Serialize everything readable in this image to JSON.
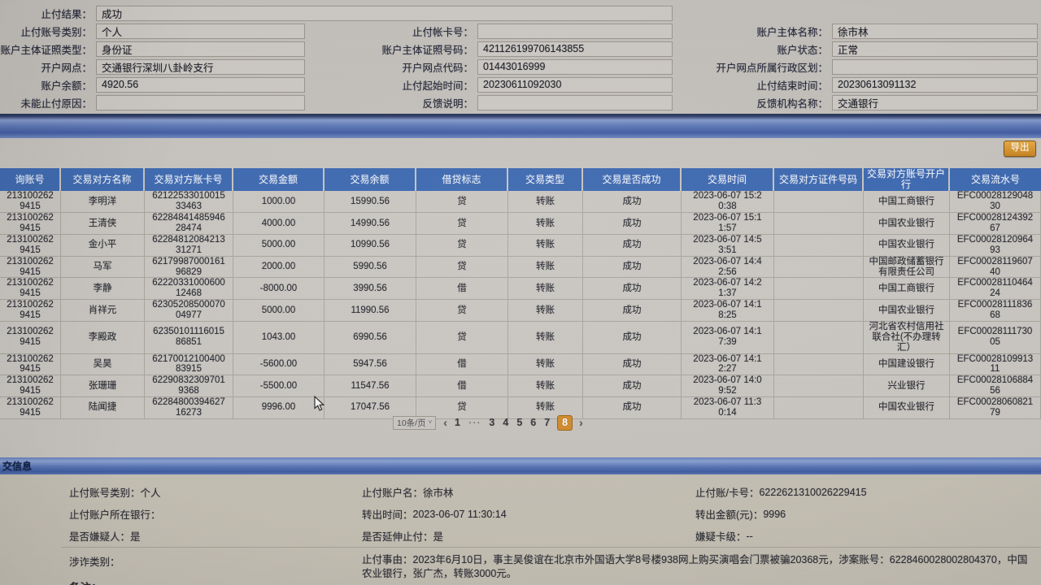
{
  "top_form": {
    "row0": {
      "label": "止付结果：",
      "value": "成功"
    },
    "left": [
      {
        "label": "止付账号类别：",
        "value": "个人"
      },
      {
        "label": "账户主体证照类型：",
        "value": "身份证"
      },
      {
        "label": "开户网点：",
        "value": "交通银行深圳八卦岭支行"
      },
      {
        "label": "账户余额：",
        "value": "4920.56"
      },
      {
        "label": "未能止付原因：",
        "value": ""
      }
    ],
    "mid": [
      {
        "label": "止付帐卡号：",
        "value": ""
      },
      {
        "label": "账户主体证照号码：",
        "value": "421126199706143855"
      },
      {
        "label": "开户网点代码：",
        "value": "01443016999"
      },
      {
        "label": "止付起始时间：",
        "value": "20230611092030"
      },
      {
        "label": "反馈说明：",
        "value": ""
      }
    ],
    "right": [
      {
        "label": "账户主体名称：",
        "value": "徐市林"
      },
      {
        "label": "账户状态：",
        "value": "正常"
      },
      {
        "label": "开户网点所属行政区划：",
        "value": ""
      },
      {
        "label": "止付结束时间：",
        "value": "20230613091132"
      },
      {
        "label": "反馈机构名称：",
        "value": "交通银行"
      }
    ]
  },
  "toolbar": {
    "export_label": "导出"
  },
  "table": {
    "headers": [
      "询账号",
      "交易对方名称",
      "交易对方账卡号",
      "交易金额",
      "交易余额",
      "借贷标志",
      "交易类型",
      "交易是否成功",
      "交易时间",
      "交易对方证件号码",
      "交易对方账号开户行",
      "交易流水号"
    ],
    "rows": [
      [
        "213100262\n9415",
        "李明洋",
        "62122533010015\n33463",
        "1000.00",
        "15990.56",
        "贷",
        "转账",
        "成功",
        "2023-06-07 15:2\n0:38",
        "",
        "中国工商银行",
        "EFC00028129048\n30"
      ],
      [
        "213100262\n9415",
        "王清侠",
        "62284841485946\n28474",
        "4000.00",
        "14990.56",
        "贷",
        "转账",
        "成功",
        "2023-06-07 15:1\n1:57",
        "",
        "中国农业银行",
        "EFC00028124392\n67"
      ],
      [
        "213100262\n9415",
        "金小平",
        "62284812084213\n31271",
        "5000.00",
        "10990.56",
        "贷",
        "转账",
        "成功",
        "2023-06-07 14:5\n3:51",
        "",
        "中国农业银行",
        "EFC00028120964\n93"
      ],
      [
        "213100262\n9415",
        "马军",
        "62179987000161\n96829",
        "2000.00",
        "5990.56",
        "贷",
        "转账",
        "成功",
        "2023-06-07 14:4\n2:56",
        "",
        "中国邮政储蓄银行\n有限责任公司",
        "EFC00028119607\n40"
      ],
      [
        "213100262\n9415",
        "李静",
        "62220331000600\n12468",
        "-8000.00",
        "3990.56",
        "借",
        "转账",
        "成功",
        "2023-06-07 14:2\n1:37",
        "",
        "中国工商银行",
        "EFC00028110464\n24"
      ],
      [
        "213100262\n9415",
        "肖祥元",
        "62305208500070\n04977",
        "5000.00",
        "11990.56",
        "贷",
        "转账",
        "成功",
        "2023-06-07 14:1\n8:25",
        "",
        "中国农业银行",
        "EFC00028111836\n68"
      ],
      [
        "213100262\n9415",
        "李殿政",
        "62350101116015\n86851",
        "1043.00",
        "6990.56",
        "贷",
        "转账",
        "成功",
        "2023-06-07 14:1\n7:39",
        "",
        "河北省农村信用社\n联合社(不办理转\n汇）",
        "EFC00028111730\n05"
      ],
      [
        "213100262\n9415",
        "吴昊",
        "62170012100400\n83915",
        "-5600.00",
        "5947.56",
        "借",
        "转账",
        "成功",
        "2023-06-07 14:1\n2:27",
        "",
        "中国建设银行",
        "EFC00028109913\n11"
      ],
      [
        "213100262\n9415",
        "张珊珊",
        "62290832309701\n9368",
        "-5500.00",
        "11547.56",
        "借",
        "转账",
        "成功",
        "2023-06-07 14:0\n9:52",
        "",
        "兴业银行",
        "EFC00028106884\n56"
      ],
      [
        "213100262\n9415",
        "陆闻捷",
        "62284800394627\n16273",
        "9996.00",
        "17047.56",
        "贷",
        "转账",
        "成功",
        "2023-06-07 11:3\n0:14",
        "",
        "中国农业银行",
        "EFC00028060821\n79"
      ]
    ]
  },
  "pagination": {
    "page_size": "10条/页",
    "chevron": "˅",
    "prev": "‹",
    "next": "›",
    "pages": [
      "1",
      "···",
      "3",
      "4",
      "5",
      "6",
      "7",
      "8"
    ],
    "active": "8"
  },
  "bottom": {
    "section_title": "交信息",
    "rows": [
      [
        {
          "label": "止付账号类别：",
          "value": "个人"
        },
        {
          "label": "止付账户名：",
          "value": "徐市林"
        },
        {
          "label": "止付账/卡号：",
          "value": "6222621310026229415"
        }
      ],
      [
        {
          "label": "止付账户所在银行：",
          "value": ""
        },
        {
          "label": "转出时间：",
          "value": "2023-06-07 11:30:14"
        },
        {
          "label": "转出金额(元)：",
          "value": "9996"
        }
      ],
      [
        {
          "label": "是否嫌疑人：",
          "value": "是"
        },
        {
          "label": "是否延伸止付：",
          "value": "是"
        },
        {
          "label": "嫌疑卡级：",
          "value": "--"
        }
      ]
    ],
    "category_label": "涉诈类别：",
    "reason_label": "止付事由：",
    "reason_text": "2023年6月10日，事主吴俊谊在北京市外国语大学8号楼938网上购买演唱会门票被骗20368元，涉案账号：6228460028002804370，中国农业银行，张广杰，转账3000元。",
    "note_label": "备注："
  },
  "colors": {
    "accent_orange": "#d18a2a",
    "header_blue": "#3b67b0",
    "bar_blue": "#4a66aa"
  }
}
